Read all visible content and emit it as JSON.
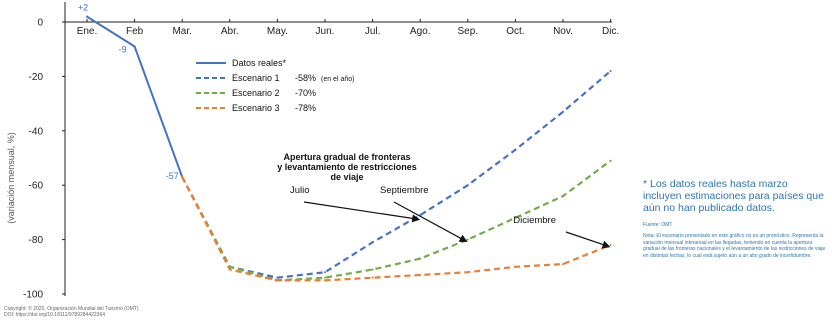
{
  "chart_data": {
    "type": "line",
    "title": "",
    "xlabel": "",
    "ylabel": "(variación mensual, %)",
    "categories": [
      "Ene.",
      "Feb",
      "Mar.",
      "Abr.",
      "May.",
      "Jun.",
      "Jul.",
      "Ago.",
      "Sep.",
      "Oct.",
      "Nov.",
      "Dic."
    ],
    "ylim": [
      -100,
      0
    ],
    "yticks": [
      0,
      -20,
      -40,
      -60,
      -80,
      -100
    ],
    "grid": false,
    "legend_position": "upper-middle",
    "series": [
      {
        "name": "Datos reales*",
        "style": "solid",
        "color": "#4472c4",
        "values": [
          2,
          -9,
          -57,
          null,
          null,
          null,
          null,
          null,
          null,
          null,
          null,
          null
        ]
      },
      {
        "name": "Escenario 1",
        "legend_value": "-58%",
        "legend_note": "(en el año)",
        "style": "dashed",
        "color": "#4472c4",
        "values": [
          null,
          null,
          -57,
          -90,
          -94,
          -92,
          -81,
          -71,
          -60,
          -47,
          -33,
          -18
        ]
      },
      {
        "name": "Escenario 2",
        "legend_value": "-70%",
        "style": "dashed",
        "color": "#70ad47",
        "values": [
          null,
          null,
          -57,
          -90,
          -95,
          -94,
          -91,
          -87,
          -80,
          -72,
          -64,
          -51
        ]
      },
      {
        "name": "Escenario 3",
        "legend_value": "-78%",
        "style": "dashed",
        "color": "#ed7d31",
        "values": [
          null,
          null,
          -57,
          -91,
          -95,
          -95,
          -94,
          -93,
          -92,
          -90,
          -89,
          -82
        ]
      }
    ],
    "data_labels": [
      {
        "category": "Ene.",
        "value": 2,
        "text": "+2"
      },
      {
        "category": "Feb",
        "value": -9,
        "text": "-9"
      },
      {
        "category": "Mar.",
        "value": -57,
        "text": "-57"
      }
    ],
    "annotations": {
      "heading": [
        "Apertura gradual de fronteras",
        "y levantamiento de restricciones",
        "de viaje"
      ],
      "arrows": [
        {
          "text": "Julio",
          "series": "Escenario 1",
          "target_category": "Ago.",
          "target_value": -74
        },
        {
          "text": "Septiembre",
          "series": "Escenario 2",
          "target_category": "Sep.",
          "target_value": -82
        },
        {
          "text": "Diciembre",
          "series": "Escenario 3",
          "target_category": "Dic.",
          "target_value": -84
        }
      ]
    }
  },
  "side_note": {
    "main": "* Los datos reales hasta marzo incluyen estimaciones para países que aún no han publicado datos.",
    "source": "Fuente: OMT",
    "note": "Nota: El escenario presentado en este gráfico no es un pronóstico. Representa la variación mensual interanual en las llegadas, teniendo en cuenta la apertura gradual de las fronteras nacionales y el levantamiento de las restricciones de viaje en distintas fechas, lo cual está sujeto aún a un alto grado de incertidumbre."
  },
  "copyright": {
    "line1": "Copyright: © 2020, Organización Mundial del Turismo (OMT)",
    "line2": "DOI: https://doi.org/10.18111/9789284422364"
  }
}
